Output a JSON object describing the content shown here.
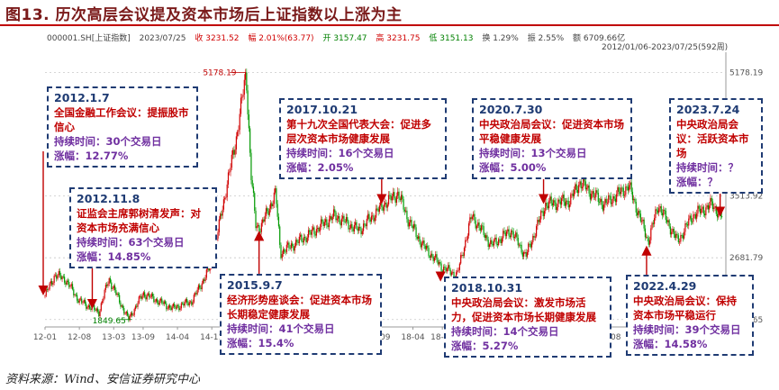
{
  "title": "图13. 历次高层会议提及资本市场后上证指数以上涨为主",
  "quote_bar": {
    "code": "000001.SH[上证指数]",
    "date": "2023/07/25",
    "close": "收 3231.52",
    "change": "幅 2.01%(63.77)",
    "open": "开 3157.47",
    "high": "高 3231.75",
    "low": "低 3151.13",
    "turnover": "换 1.29%",
    "amplitude": "振 2.55%",
    "amount": "额 6709.66亿"
  },
  "range_label": "2012/01/06-2023/07/25(592周)",
  "chart_data": {
    "type": "candlestick",
    "ylim": [
      1750,
      5450
    ],
    "ytick_labels": [
      {
        "value": 5178.19,
        "label": "5178.19"
      },
      {
        "value": 3513.92,
        "label": "3513.92"
      },
      {
        "value": 2681.79,
        "label": "2681.79"
      },
      {
        "value": 1849.65,
        "label": "1849.65"
      }
    ],
    "x_tick_labels": [
      "12-01",
      "12-08",
      "13-03",
      "13-09",
      "14-04",
      "14-11",
      "15-06",
      "16-01",
      "16-07",
      "17-02",
      "17-09",
      "18-04",
      "18-10",
      "19-05",
      "19-12",
      "20-07",
      "21-01",
      "21-08",
      "22-02",
      "22-09",
      "23-03",
      "23-07"
    ],
    "key_points": [
      {
        "date": "2012-01",
        "value": 2170
      },
      {
        "date": "2012-03",
        "value": 2450
      },
      {
        "date": "2012-05",
        "value": 2400
      },
      {
        "date": "2012-08",
        "value": 2100
      },
      {
        "date": "2012-12",
        "value": 1950
      },
      {
        "date": "2013-02",
        "value": 2400
      },
      {
        "date": "2013-06",
        "value": 1849.65
      },
      {
        "date": "2013-09",
        "value": 2200
      },
      {
        "date": "2014-03",
        "value": 2000
      },
      {
        "date": "2014-07",
        "value": 2100
      },
      {
        "date": "2014-11",
        "value": 2600
      },
      {
        "date": "2015-01",
        "value": 3300
      },
      {
        "date": "2015-04",
        "value": 4300
      },
      {
        "date": "2015-06",
        "value": 5178.19
      },
      {
        "date": "2015-07",
        "value": 3800
      },
      {
        "date": "2015-08",
        "value": 3100
      },
      {
        "date": "2015-09",
        "value": 3100
      },
      {
        "date": "2015-12",
        "value": 3550
      },
      {
        "date": "2016-01",
        "value": 2750
      },
      {
        "date": "2016-07",
        "value": 3000
      },
      {
        "date": "2016-12",
        "value": 3250
      },
      {
        "date": "2017-05",
        "value": 3050
      },
      {
        "date": "2017-10",
        "value": 3400
      },
      {
        "date": "2018-01",
        "value": 3550
      },
      {
        "date": "2018-03",
        "value": 3200
      },
      {
        "date": "2018-06",
        "value": 2850
      },
      {
        "date": "2018-10",
        "value": 2550
      },
      {
        "date": "2019-01",
        "value": 2450
      },
      {
        "date": "2019-04",
        "value": 3250
      },
      {
        "date": "2019-08",
        "value": 2850
      },
      {
        "date": "2019-12",
        "value": 3050
      },
      {
        "date": "2020-03",
        "value": 2700
      },
      {
        "date": "2020-07",
        "value": 3400
      },
      {
        "date": "2020-12",
        "value": 3450
      },
      {
        "date": "2021-02",
        "value": 3700
      },
      {
        "date": "2021-07",
        "value": 3400
      },
      {
        "date": "2021-12",
        "value": 3650
      },
      {
        "date": "2022-04",
        "value": 2900
      },
      {
        "date": "2022-06",
        "value": 3400
      },
      {
        "date": "2022-10",
        "value": 2900
      },
      {
        "date": "2023-01",
        "value": 3250
      },
      {
        "date": "2023-05",
        "value": 3400
      },
      {
        "date": "2023-07",
        "value": 3231.52
      }
    ],
    "events": [
      {
        "date": "2012.1.7",
        "meeting": "全国金融工作会议：提振股市信心",
        "duration": "持续时间：30个交易日",
        "gain": "涨幅：12.77%"
      },
      {
        "date": "2012.11.8",
        "meeting": "证监会主席郭树清发声：对资本市场充满信心",
        "duration": "持续时间：63个交易日",
        "gain": "涨幅：14.85%"
      },
      {
        "date": "2015.9.7",
        "meeting": "经济形势座谈会：促进资本市场长期稳定健康发展",
        "duration": "持续时间：41个交易日",
        "gain": "涨幅：15.4%"
      },
      {
        "date": "2017.10.21",
        "meeting": "第十九次全国代表大会：促进多层次资本市场健康发展",
        "duration": "持续时间：16个交易日",
        "gain": "涨幅：2.05%"
      },
      {
        "date": "2018.10.31",
        "meeting": "中央政治局会议：激发市场活力，促进资本市场长期健康发展",
        "duration": "持续时间：14个交易日",
        "gain": "涨幅：5.27%"
      },
      {
        "date": "2020.7.30",
        "meeting": "中央政治局会议：促进资本市场平稳健康发展",
        "duration": "持续时间：13个交易日",
        "gain": "涨幅：5.00%"
      },
      {
        "date": "2022.4.29",
        "meeting": "中央政治局会议：保持资本市场平稳运行",
        "duration": "持续时间：39个交易日",
        "gain": "涨幅：14.58%"
      },
      {
        "date": "2023.7.24",
        "meeting": "中央政治局会议：活跃资本市场",
        "duration": "持续时间：？",
        "gain": "涨幅：？"
      }
    ],
    "colors": {
      "up": "#d00000",
      "down": "#009900",
      "arrow": "#c00000",
      "box_border": "#1f3b73",
      "grid": "#c8c8c8"
    }
  },
  "source": "资料来源：Wind、安信证券研究中心"
}
